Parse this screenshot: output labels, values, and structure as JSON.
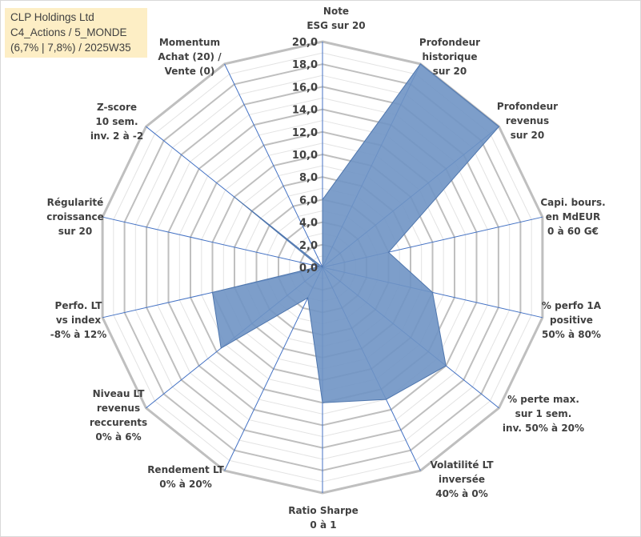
{
  "header": {
    "company": "CLP Holdings Ltd",
    "line2": "C4_Actions / 5_MONDE",
    "line3": "(6,7% | 7,8%) / 2025W35"
  },
  "chart_data": {
    "type": "radar",
    "rmin": 0,
    "rmax": 20,
    "tick_step": 2,
    "ticks": [
      "0,0",
      "2,0",
      "4,0",
      "6,0",
      "8,0",
      "10,0",
      "12,0",
      "14,0",
      "16,0",
      "18,0",
      "20,0"
    ],
    "axes": [
      [
        "Note",
        "ESG sur 20"
      ],
      [
        "Profondeur",
        "historique",
        "sur 20"
      ],
      [
        "Profondeur",
        "revenus",
        "sur 20"
      ],
      [
        "Capi. bours.",
        "en MdEUR",
        "0 à 60 G€"
      ],
      [
        "% perfo 1A",
        "positive",
        "50% à 80%"
      ],
      [
        "% perte max.",
        "sur 1 sem.",
        "inv. 50% à 20%"
      ],
      [
        "Volatilité LT",
        "inversée",
        "40% à 0%"
      ],
      [
        "Ratio Sharpe",
        "0 à 1"
      ],
      [
        "Rendement LT",
        "0% à 20%"
      ],
      [
        "Niveau LT",
        "revenus",
        "reccurents",
        "0% à 6%"
      ],
      [
        "Perfo. LT",
        "vs index",
        "-8% à 12%"
      ],
      [
        "Régularité",
        "croissance",
        "sur 20"
      ],
      [
        "Z-score",
        "10 sem.",
        "inv. 2 à -2"
      ],
      [
        "Momentum",
        "Achat (20) /",
        "Vente (0)"
      ]
    ],
    "values": [
      6.0,
      20.0,
      20.0,
      6.0,
      10.0,
      14.0,
      13.0,
      12.0,
      3.0,
      11.5,
      10.0,
      0.3,
      10.0,
      0.0
    ],
    "series_color": "#6f93c4",
    "series_stroke": "#4f76ad",
    "grid": true
  }
}
